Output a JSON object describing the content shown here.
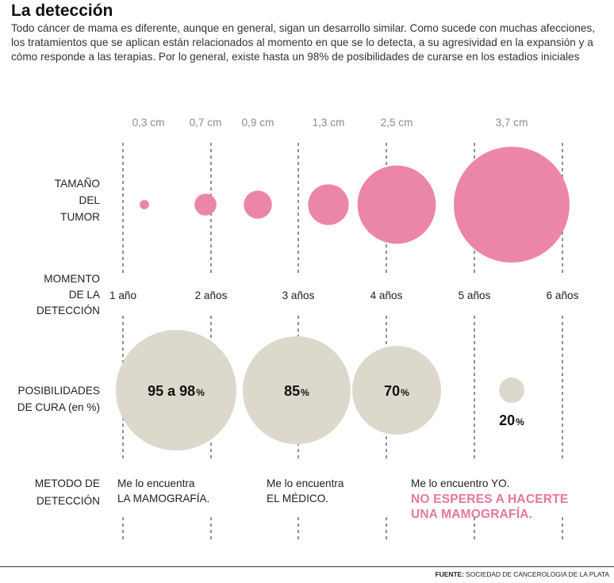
{
  "title": "La detección",
  "intro": "Todo cáncer de mama es diferente, aunque en general, sigan un desarrollo similar. Como sucede con muchas afecciones, los tratamientos que se aplican están relacionados al momento en que se lo detecta, a su agresividad en la expansión y a cómo responde a las terapias. Por lo general, existe hasta un 98% de posibilidades de curarse en los estadios iniciales",
  "row_labels": {
    "size": [
      "TAMAÑO",
      "DEL",
      "TUMOR"
    ],
    "moment": [
      "MOMENTO",
      "DE LA",
      "DETECCIÓN"
    ],
    "cure": [
      "POSIBILIDADES",
      "DE CURA (en %)"
    ],
    "method": [
      "METODO DE",
      "DETECCIÓN"
    ]
  },
  "chart_data": [
    {
      "type": "bubble",
      "name": "Tamaño del tumor",
      "unit": "cm",
      "color": "#ec86a6",
      "points": [
        {
          "label": "0,3 cm",
          "value": 0.3
        },
        {
          "label": "0,7 cm",
          "value": 0.7
        },
        {
          "label": "0,9 cm",
          "value": 0.9
        },
        {
          "label": "1,3 cm",
          "value": 1.3
        },
        {
          "label": "2,5 cm",
          "value": 2.5
        },
        {
          "label": "3,7 cm",
          "value": 3.7
        }
      ]
    },
    {
      "type": "timeline",
      "name": "Momento de la detección",
      "ticks": [
        "1 año",
        "2 años",
        "3 años",
        "4 años",
        "5 años",
        "6 años"
      ]
    },
    {
      "type": "bubble",
      "name": "Posibilidades de cura",
      "unit": "%",
      "color": "#dcd8cb",
      "points": [
        {
          "label": "95 a 98",
          "value": 98,
          "pct": "%"
        },
        {
          "label": "85",
          "value": 85,
          "pct": "%"
        },
        {
          "label": "70",
          "value": 70,
          "pct": "%"
        },
        {
          "label": "20",
          "value": 20,
          "pct": "%"
        }
      ]
    }
  ],
  "methods": [
    {
      "line1": "Me lo encuentra",
      "line2": "LA MAMOGRAFÍA."
    },
    {
      "line1": "Me lo encuentra",
      "line2": "EL MÉDICO."
    },
    {
      "line1": "Me lo encuentro YO.",
      "line2": ""
    }
  ],
  "cta": [
    "NO ESPERES A HACERTE",
    "UNA MAMOGRAFÍA."
  ],
  "source": {
    "label": "FUENTE:",
    "text": "SOCIEDAD DE  CANCEROLOGIA DE LA PLATA"
  },
  "colors": {
    "pink": "#ec86a6",
    "beige": "#dcd8cb",
    "cta": "#e7779a",
    "guide": "#555555"
  }
}
